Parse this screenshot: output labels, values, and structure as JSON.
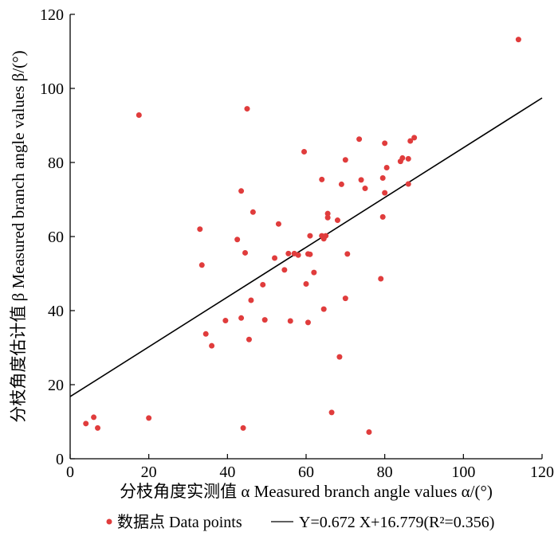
{
  "chart_data": {
    "type": "scatter",
    "xlabel": "分枝角度实测值 α Measured branch angle values α/(°)",
    "ylabel": "分枝角度估计值 β Measured branch angle values β/(°)",
    "xlim": [
      0,
      120
    ],
    "ylim": [
      0,
      120
    ],
    "xticks": [
      "0",
      "20",
      "40",
      "60",
      "80",
      "100",
      "120"
    ],
    "yticks": [
      "0",
      "20",
      "40",
      "60",
      "80",
      "100",
      "120"
    ],
    "grid": false,
    "legend_position": "bottom",
    "series": [
      {
        "name": "数据点 Data points",
        "kind": "points",
        "color": "#e03c3c",
        "x": [
          4.0,
          6.0,
          7.0,
          17.5,
          20.0,
          33.0,
          33.5,
          34.5,
          36.0,
          39.5,
          42.5,
          43.5,
          43.5,
          44.0,
          44.5,
          45.0,
          45.5,
          46.0,
          46.5,
          49.0,
          49.5,
          52.0,
          53.0,
          54.5,
          55.5,
          56.0,
          57.0,
          58.0,
          59.5,
          60.0,
          60.5,
          60.5,
          61.0,
          61.0,
          62.0,
          64.0,
          64.0,
          64.5,
          64.5,
          65.0,
          65.5,
          65.5,
          66.5,
          68.0,
          68.5,
          69.0,
          70.0,
          70.0,
          70.5,
          73.5,
          74.0,
          75.0,
          79.0,
          79.5,
          79.5,
          80.0,
          80.0,
          80.5,
          84.0,
          84.5,
          86.0,
          86.0,
          86.5,
          87.5,
          114.0,
          76.0
        ],
        "y": [
          9.5,
          11.2,
          8.3,
          92.8,
          11.0,
          62.0,
          52.3,
          33.7,
          30.5,
          37.3,
          59.2,
          38.0,
          72.3,
          8.3,
          55.6,
          94.5,
          32.2,
          42.8,
          66.6,
          47.0,
          37.5,
          54.2,
          63.4,
          51.0,
          55.4,
          37.2,
          55.4,
          55.0,
          82.9,
          47.2,
          55.3,
          36.8,
          60.2,
          55.2,
          50.3,
          60.2,
          75.4,
          59.4,
          40.4,
          60.2,
          66.2,
          65.1,
          12.5,
          64.4,
          27.5,
          74.1,
          80.7,
          43.3,
          55.3,
          86.3,
          75.3,
          73.0,
          48.6,
          65.3,
          75.8,
          85.2,
          71.8,
          78.6,
          80.3,
          81.2,
          81.0,
          74.2,
          85.8,
          86.7,
          113.2,
          7.2
        ]
      },
      {
        "name": "Y=0.672 X+16.779(R²=0.356)",
        "kind": "fit-line",
        "color": "#000000",
        "slope": 0.672,
        "intercept": 16.779,
        "r_squared": 0.356,
        "x": [
          0,
          120
        ],
        "y": [
          16.779,
          97.419
        ]
      }
    ],
    "legend": {
      "points_label": "数据点 Data points",
      "line_label": "Y=0.672 X+16.779(R²=0.356)"
    }
  }
}
